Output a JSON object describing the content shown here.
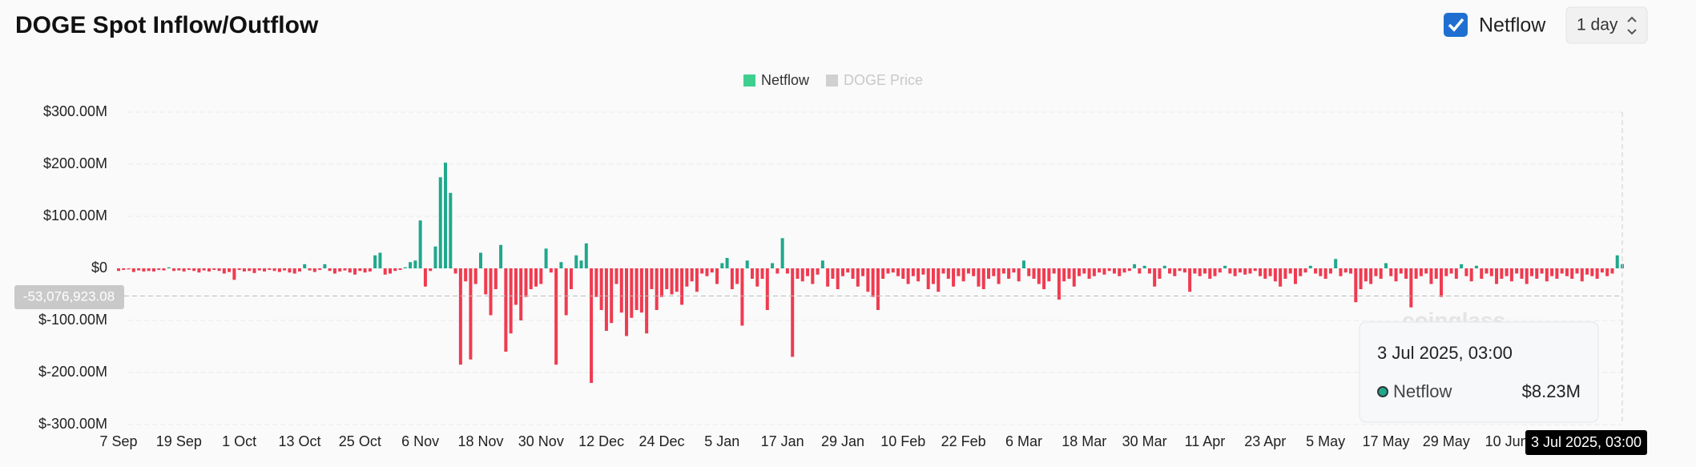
{
  "header": {
    "title": "DOGE Spot Inflow/Outflow",
    "toggle_label": "Netflow",
    "interval": "1 day"
  },
  "chart_data": {
    "type": "bar",
    "legend": [
      {
        "name": "Netflow",
        "color": "#3ecf8e"
      },
      {
        "name": "DOGE Price",
        "color": "#d0d0d0"
      }
    ],
    "positive_color": "#1fa88c",
    "negative_color": "#ef3b50",
    "grid": true,
    "ylim": [
      -300,
      300
    ],
    "yticks": [
      {
        "value": -300,
        "label": "$-300.00M"
      },
      {
        "value": -200,
        "label": "$-200.00M"
      },
      {
        "value": -100,
        "label": "$-100.00M"
      },
      {
        "value": 0,
        "label": "$0"
      },
      {
        "value": 100,
        "label": "$100.00M"
      },
      {
        "value": 200,
        "label": "$200.00M"
      },
      {
        "value": 300,
        "label": "$300.00M"
      }
    ],
    "categories": [
      "7 Sep",
      null,
      null,
      null,
      null,
      null,
      null,
      null,
      null,
      null,
      null,
      null,
      "19 Sep",
      null,
      null,
      null,
      null,
      null,
      null,
      null,
      null,
      null,
      null,
      null,
      "1 Oct",
      null,
      null,
      null,
      null,
      null,
      null,
      null,
      null,
      null,
      null,
      null,
      "13 Oct",
      null,
      null,
      null,
      null,
      null,
      null,
      null,
      null,
      null,
      null,
      null,
      "25 Oct",
      null,
      null,
      null,
      null,
      null,
      null,
      null,
      null,
      null,
      null,
      null,
      "6 Nov",
      null,
      null,
      null,
      null,
      null,
      null,
      null,
      null,
      null,
      null,
      null,
      "18 Nov",
      null,
      null,
      null,
      null,
      null,
      null,
      null,
      null,
      null,
      null,
      null,
      "30 Nov",
      null,
      null,
      null,
      null,
      null,
      null,
      null,
      null,
      null,
      null,
      null,
      "12 Dec",
      null,
      null,
      null,
      null,
      null,
      null,
      null,
      null,
      null,
      null,
      null,
      "24 Dec",
      null,
      null,
      null,
      null,
      null,
      null,
      null,
      null,
      null,
      null,
      null,
      "5 Jan",
      null,
      null,
      null,
      null,
      null,
      null,
      null,
      null,
      null,
      null,
      null,
      "17 Jan",
      null,
      null,
      null,
      null,
      null,
      null,
      null,
      null,
      null,
      null,
      null,
      "29 Jan",
      null,
      null,
      null,
      null,
      null,
      null,
      null,
      null,
      null,
      null,
      null,
      "10 Feb",
      null,
      null,
      null,
      null,
      null,
      null,
      null,
      null,
      null,
      null,
      null,
      "22 Feb",
      null,
      null,
      null,
      null,
      null,
      null,
      null,
      null,
      null,
      null,
      null,
      "6 Mar",
      null,
      null,
      null,
      null,
      null,
      null,
      null,
      null,
      null,
      null,
      null,
      "18 Mar",
      null,
      null,
      null,
      null,
      null,
      null,
      null,
      null,
      null,
      null,
      null,
      "30 Mar",
      null,
      null,
      null,
      null,
      null,
      null,
      null,
      null,
      null,
      null,
      null,
      "11 Apr",
      null,
      null,
      null,
      null,
      null,
      null,
      null,
      null,
      null,
      null,
      null,
      "23 Apr",
      null,
      null,
      null,
      null,
      null,
      null,
      null,
      null,
      null,
      null,
      null,
      "5 May",
      null,
      null,
      null,
      null,
      null,
      null,
      null,
      null,
      null,
      null,
      null,
      "17 May",
      null,
      null,
      null,
      null,
      null,
      null,
      null,
      null,
      null,
      null,
      null,
      "29 May",
      null,
      null,
      null,
      null,
      null,
      null,
      null,
      null,
      null,
      null,
      null,
      "10 Jun",
      null,
      null,
      null,
      null,
      null,
      null,
      null,
      null,
      null,
      null,
      null,
      null,
      null,
      null,
      null,
      null,
      null,
      null,
      null,
      null,
      null,
      null,
      null
    ],
    "series": [
      {
        "name": "Netflow",
        "values": [
          -5,
          -3,
          -2,
          -7,
          -4,
          -6,
          -5,
          -6,
          -3,
          -4,
          2,
          -5,
          -4,
          -6,
          -3,
          -5,
          -8,
          -4,
          -6,
          -3,
          -5,
          -10,
          -7,
          -22,
          -3,
          -6,
          -5,
          -9,
          -4,
          -6,
          -3,
          -5,
          -7,
          -4,
          -8,
          -10,
          -6,
          8,
          -4,
          -7,
          -3,
          8,
          -5,
          -10,
          -6,
          -4,
          -8,
          -12,
          -5,
          -8,
          -6,
          25,
          30,
          -12,
          -10,
          -5,
          -3,
          2,
          12,
          15,
          92,
          -35,
          -5,
          42,
          175,
          203,
          145,
          -10,
          -185,
          -25,
          -175,
          -30,
          30,
          -50,
          -90,
          -40,
          45,
          -160,
          -125,
          -70,
          -100,
          -55,
          -40,
          -35,
          -30,
          38,
          -8,
          -185,
          12,
          -90,
          -40,
          25,
          15,
          48,
          -220,
          -55,
          -80,
          -120,
          -105,
          -30,
          -85,
          -130,
          -95,
          -80,
          -85,
          -125,
          -40,
          -80,
          -55,
          -40,
          -50,
          -45,
          -70,
          -35,
          -25,
          -45,
          -10,
          -15,
          -8,
          -30,
          10,
          20,
          -40,
          -30,
          -110,
          15,
          -20,
          -35,
          -20,
          -80,
          10,
          -10,
          58,
          -10,
          -170,
          -20,
          -25,
          -15,
          -30,
          -12,
          15,
          -35,
          -20,
          -40,
          -15,
          -8,
          -20,
          -35,
          -15,
          -45,
          -55,
          -80,
          -20,
          -10,
          -8,
          -15,
          -20,
          -30,
          -15,
          -25,
          -12,
          -40,
          -30,
          -45,
          -10,
          -20,
          -35,
          -15,
          -25,
          -10,
          -15,
          -35,
          -40,
          -20,
          -15,
          -30,
          -10,
          -20,
          -8,
          -25,
          15,
          -15,
          -20,
          -30,
          -40,
          -25,
          -10,
          -60,
          -25,
          -20,
          -35,
          -15,
          -10,
          -20,
          -15,
          -8,
          -12,
          -5,
          -10,
          -15,
          -8,
          -5,
          8,
          -10,
          5,
          -10,
          -35,
          -20,
          5,
          -10,
          -15,
          -5,
          -8,
          -45,
          -10,
          -15,
          -10,
          -20,
          -15,
          -8,
          5,
          -10,
          -15,
          -8,
          -12,
          -10,
          -5,
          -15,
          -20,
          -15,
          -25,
          -35,
          -20,
          -10,
          -30,
          -15,
          -8,
          5,
          -10,
          -15,
          -20,
          -10,
          18,
          -15,
          -8,
          -10,
          -65,
          -40,
          -25,
          -30,
          -15,
          -20,
          10,
          -15,
          -25,
          -10,
          -20,
          -75,
          -20,
          -15,
          -10,
          -30,
          -20,
          -55,
          -15,
          -10,
          -20,
          8,
          -15,
          -25,
          5,
          -20,
          -10,
          -15,
          -30,
          -20,
          -15,
          -25,
          -10,
          -20,
          -30,
          -15,
          -20,
          -10,
          -25,
          -15,
          -20,
          -10,
          -15,
          -20,
          -10,
          -25,
          -12,
          -15,
          -20,
          -8,
          -15,
          -10,
          25,
          8.23
        ]
      }
    ],
    "crosshair": {
      "x_label": "3 Jul 2025, 03:00",
      "y_value": -53.07692308,
      "y_label": "-53,076,923.08"
    },
    "tooltip": {
      "title": "3 Jul 2025, 03:00",
      "series": "Netflow",
      "value_label": "$8.23M"
    },
    "watermark": "coinglass"
  }
}
